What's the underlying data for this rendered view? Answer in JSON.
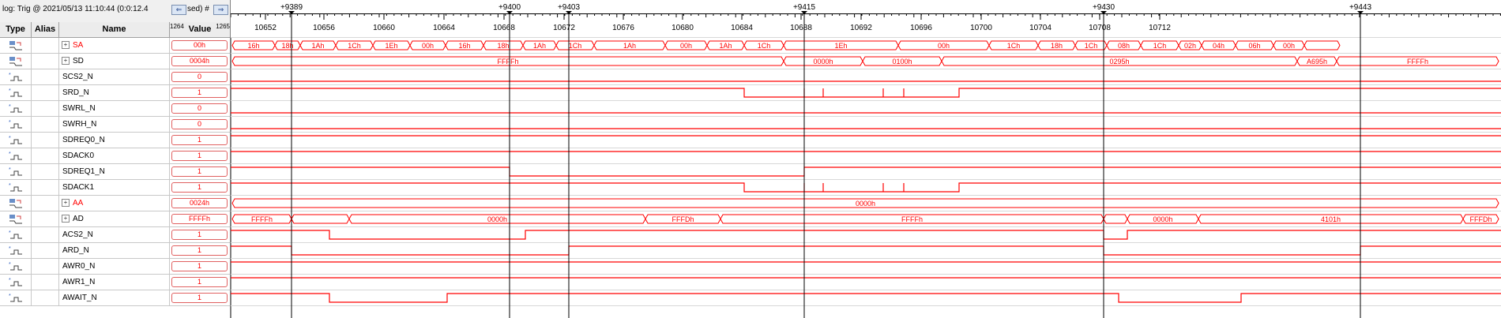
{
  "header": {
    "trigger": "log: Trig @ 2021/05/13 11:10:44 (0:0:12.4",
    "trigger_tail": "sed) #",
    "marker_left": "1264",
    "marker_right": "1265"
  },
  "columns": {
    "type": "Type",
    "alias": "Alias",
    "name": "Name",
    "value": "Value"
  },
  "colors": {
    "signal": "#ff0000",
    "cursor": "#000000",
    "grid": "#c0c0c0"
  },
  "timeline": {
    "ticks": [
      "10652",
      "10656",
      "10660",
      "10664",
      "10668",
      "10672",
      "10676",
      "10680",
      "10684",
      "10688",
      "10692",
      "10696",
      "10700",
      "10704",
      "10708",
      "10712"
    ],
    "cursors": [
      "+9389",
      "+9400",
      "+9403",
      "+9415",
      "+9430",
      "+9443"
    ]
  },
  "signals": [
    {
      "name": "SA",
      "value": "00h",
      "bus": true,
      "icon": "bus-icon",
      "label_color": "red",
      "segments": [
        "16h",
        "18h",
        "1Ah",
        "1Ch",
        "1Eh",
        "00h",
        "16h",
        "18h",
        "1Ah",
        "1Ch",
        "1Ah",
        "00h",
        "1Ah",
        "1Ch",
        "1Eh",
        "00h",
        "1Ch",
        "18h",
        "1Ch",
        "08h",
        "1Ch",
        "02h",
        "04h",
        "06h",
        "00h"
      ]
    },
    {
      "name": "SD",
      "value": "0004h",
      "bus": true,
      "icon": "bus-icon",
      "label_color": "black",
      "segments": [
        "FFFFh",
        "0000h",
        "0100h",
        "0295h",
        "A695h",
        "FFFFh"
      ]
    },
    {
      "name": "SCS2_N",
      "value": "0",
      "bus": false,
      "icon": "signal-icon"
    },
    {
      "name": "SRD_N",
      "value": "1",
      "bus": false,
      "icon": "signal-icon"
    },
    {
      "name": "SWRL_N",
      "value": "0",
      "bus": false,
      "icon": "signal-icon"
    },
    {
      "name": "SWRH_N",
      "value": "0",
      "bus": false,
      "icon": "signal-icon"
    },
    {
      "name": "SDREQ0_N",
      "value": "1",
      "bus": false,
      "icon": "signal-icon"
    },
    {
      "name": "SDACK0",
      "value": "1",
      "bus": false,
      "icon": "signal-icon"
    },
    {
      "name": "SDREQ1_N",
      "value": "1",
      "bus": false,
      "icon": "signal-icon"
    },
    {
      "name": "SDACK1",
      "value": "1",
      "bus": false,
      "icon": "signal-icon"
    },
    {
      "name": "AA",
      "value": "0024h",
      "bus": true,
      "icon": "bus-icon",
      "label_color": "red",
      "segments": [
        "0000h"
      ]
    },
    {
      "name": "AD",
      "value": "FFFFh",
      "bus": true,
      "icon": "bus-icon",
      "label_color": "black",
      "segments": [
        "FFFFh",
        "0000h",
        "FFFDh",
        "FFFFh",
        "0000h",
        "4101h",
        "FFFDh"
      ]
    },
    {
      "name": "ACS2_N",
      "value": "1",
      "bus": false,
      "icon": "signal-icon"
    },
    {
      "name": "ARD_N",
      "value": "1",
      "bus": false,
      "icon": "signal-icon"
    },
    {
      "name": "AWR0_N",
      "value": "1",
      "bus": false,
      "icon": "signal-icon"
    },
    {
      "name": "AWR1_N",
      "value": "1",
      "bus": false,
      "icon": "signal-icon"
    },
    {
      "name": "AWAIT_N",
      "value": "1",
      "bus": false,
      "icon": "signal-icon"
    }
  ]
}
